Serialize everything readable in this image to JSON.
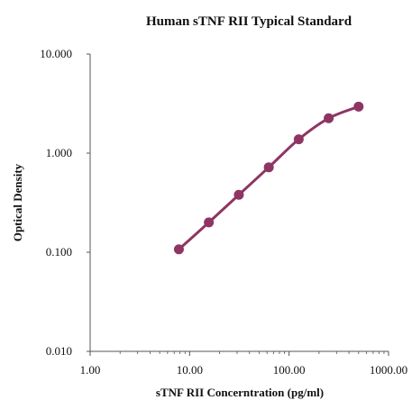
{
  "chart_data": {
    "type": "line",
    "title": "Human sTNF RII Typical Standard",
    "xlabel": "sTNF RII Concerntration (pg/ml)",
    "ylabel": "Optical Density",
    "x_scale": "log",
    "y_scale": "log",
    "xlim": [
      1,
      1000
    ],
    "ylim": [
      0.01,
      10
    ],
    "x_ticks": [
      1,
      10,
      100,
      1000
    ],
    "x_tick_labels": [
      "1.00",
      "10.00",
      "100.00",
      "1000.00"
    ],
    "y_ticks": [
      0.01,
      0.1,
      1,
      10
    ],
    "y_tick_labels": [
      "0.010",
      "0.100",
      "1.000",
      "10.000"
    ],
    "grid": false,
    "legend": "none",
    "series": [
      {
        "color": "#8e3563",
        "marker": "circle",
        "x": [
          7.8,
          15.6,
          31.25,
          62.5,
          125,
          250,
          500
        ],
        "y": [
          0.107,
          0.2,
          0.38,
          0.72,
          1.38,
          2.25,
          2.95
        ]
      }
    ]
  }
}
